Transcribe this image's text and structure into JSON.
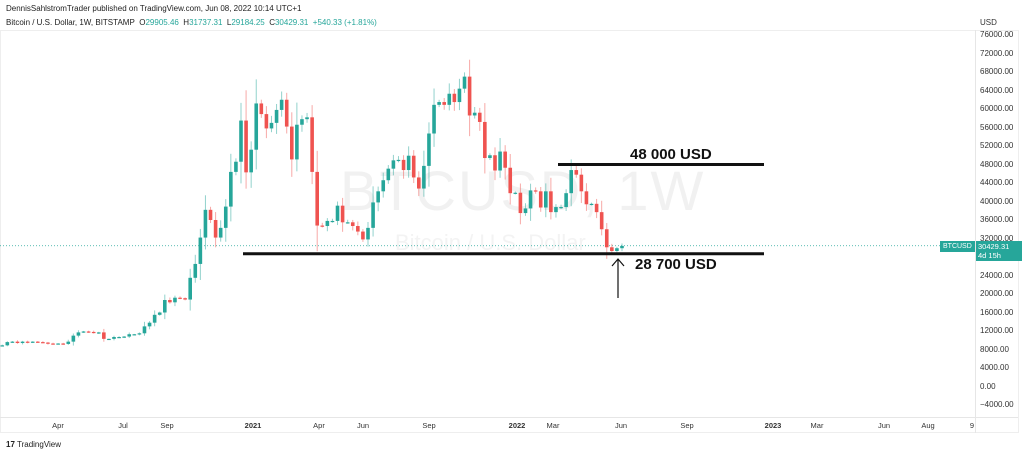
{
  "header": {
    "published": "DennisSahlstromTrader published on TradingView.com, Jun 08, 2022 10:14 UTC+1",
    "symbol": "Bitcoin / U.S. Dollar, 1W, BITSTAMP",
    "o_label": "O",
    "o": "29905.46",
    "h_label": "H",
    "h": "31737.31",
    "l_label": "L",
    "l": "29184.25",
    "c_label": "C",
    "c": "30429.31",
    "change": "+540.33 (+1.81%)"
  },
  "watermark": {
    "symbol": "BTCUSD, 1W",
    "name": "Bitcoin / U.S. Dollar"
  },
  "price_axis": {
    "currency": "USD",
    "labels": [
      "76000.00",
      "72000.00",
      "68000.00",
      "64000.00",
      "60000.00",
      "56000.00",
      "52000.00",
      "48000.00",
      "44000.00",
      "40000.00",
      "36000.00",
      "32000.00",
      "24000.00",
      "20000.00",
      "16000.00",
      "12000.00",
      "8000.00",
      "4000.00",
      "0.00",
      "−4000.00"
    ]
  },
  "time_axis": {
    "labels": [
      "Apr",
      "Jul",
      "Sep",
      "2021",
      "Apr",
      "Jun",
      "Sep",
      "2022",
      "Mar",
      "Jun",
      "Sep",
      "2023",
      "Mar",
      "Jun",
      "Aug",
      "9"
    ]
  },
  "price_tag": {
    "symbol": "BTCUSD",
    "price": "30429.31",
    "countdown": "4d 15h"
  },
  "annotations": {
    "resistance": "48 000 USD",
    "support": "28 700 USD"
  },
  "footer": {
    "logo": "TradingView"
  },
  "colors": {
    "up": "#26a69a",
    "down": "#ef5350"
  },
  "chart_data": {
    "type": "candlestick",
    "title": "Bitcoin / U.S. Dollar, 1W, BITSTAMP",
    "ylabel": "USD",
    "ylim": [
      -4000,
      76000
    ],
    "levels": [
      48000,
      28700
    ],
    "last_price": 30429.31,
    "close_k": [
      9.8,
      10.3,
      9.9,
      9.7,
      8.0,
      5.4,
      6.2,
      6.4,
      6.8,
      7.3,
      7.1,
      7.2,
      7.7,
      8.8,
      8.9,
      9.6,
      9.7,
      9.4,
      9.7,
      9.5,
      9.7,
      9.6,
      9.5,
      9.3,
      9.2,
      9.3,
      9.2,
      9.7,
      11.0,
      11.7,
      11.9,
      11.8,
      11.6,
      11.7,
      10.3,
      10.3,
      10.7,
      10.7,
      10.8,
      11.3,
      11.3,
      11.5,
      13.0,
      13.8,
      15.5,
      16.0,
      18.7,
      18.2,
      19.2,
      19.1,
      18.8,
      23.5,
      26.5,
      32.2,
      38.2,
      36.0,
      32.2,
      34.3,
      38.9,
      46.4,
      48.6,
      57.5,
      46.3,
      51.2,
      61.2,
      58.9,
      55.8,
      57.0,
      59.8,
      62.0,
      56.2,
      49.1,
      56.6,
      57.8,
      58.2,
      46.4,
      34.8,
      34.7,
      35.8,
      35.8,
      39.1,
      35.5,
      35.5,
      34.7,
      33.5,
      31.8,
      34.3,
      39.8,
      42.2,
      44.6,
      47.1,
      48.9,
      49.0,
      46.8,
      49.9,
      45.2,
      42.8,
      47.7,
      54.7,
      60.9,
      61.5,
      60.9,
      63.3,
      61.5,
      64.4,
      67.0,
      58.6,
      59.2,
      57.2,
      49.4,
      50.0,
      46.7,
      50.8,
      47.3,
      41.8,
      41.9,
      37.5,
      38.5,
      42.4,
      42.2,
      38.7,
      42.2,
      37.7,
      38.8,
      38.8,
      41.8,
      46.8,
      45.8,
      42.2,
      39.4,
      39.5,
      37.7,
      34.0,
      30.1,
      29.3,
      29.9,
      30.4
    ]
  }
}
